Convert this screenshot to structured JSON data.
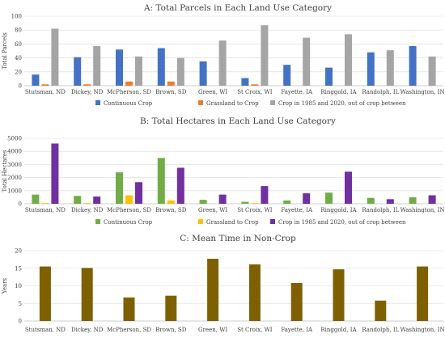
{
  "chart_data": [
    {
      "type": "bar",
      "title": "A: Total Parcels in Each Land Use Category",
      "xlabel": "",
      "ylabel": "Total Parcels",
      "ylim": [
        0,
        100
      ],
      "yticks": [
        0,
        20,
        40,
        60,
        80,
        100
      ],
      "grid": true,
      "legend": "bottom",
      "categories": [
        "Stutsman, ND",
        "Dickey, ND",
        "McPherson, SD",
        "Brown, SD",
        "Green, WI",
        "St Croix, WI",
        "Fayette, IA",
        "Ringgold, IA",
        "Randolph, IL",
        "Washington, IN"
      ],
      "series": [
        {
          "name": "Continuous Crop",
          "color": "#4472c4",
          "values": [
            16,
            41,
            52,
            54,
            35,
            11,
            30,
            26,
            48,
            57
          ]
        },
        {
          "name": "Grassland to Crop",
          "color": "#ed7d31",
          "values": [
            2,
            2,
            6,
            6,
            0,
            2,
            0,
            0,
            0,
            0
          ]
        },
        {
          "name": "Crop in 1985 and 2020, out of crop between",
          "color": "#a5a5a5",
          "values": [
            82,
            57,
            42,
            40,
            65,
            87,
            69,
            74,
            51,
            42
          ]
        }
      ]
    },
    {
      "type": "bar",
      "title": "B: Total Hectares in Each Land Use Category",
      "xlabel": "",
      "ylabel": "Total Hectares",
      "ylim": [
        0,
        5000
      ],
      "yticks": [
        0,
        1000,
        2000,
        3000,
        4000,
        5000
      ],
      "grid": true,
      "legend": "bottom",
      "categories": [
        "Stutsman, ND",
        "Dickey, ND",
        "McPherson, SD",
        "Brown, SD",
        "Green, WI",
        "St Croix, WI",
        "Fayette, IA",
        "Ringgold, IA",
        "Randolph, IL",
        "Washington, IN"
      ],
      "series": [
        {
          "name": "Continuous Crop",
          "color": "#70ad47",
          "values": [
            700,
            600,
            2400,
            3500,
            300,
            150,
            250,
            850,
            450,
            500
          ]
        },
        {
          "name": "Grassland to Crop",
          "color": "#ffc000",
          "values": [
            50,
            50,
            650,
            250,
            0,
            50,
            0,
            0,
            0,
            0
          ]
        },
        {
          "name": "Crop in 1985 and 2020, out of crop between",
          "color": "#7030a0",
          "values": [
            4600,
            550,
            1650,
            2750,
            700,
            1350,
            800,
            2450,
            350,
            650
          ]
        }
      ]
    },
    {
      "type": "bar",
      "title": "C: Mean Time in Non-Crop",
      "xlabel": "",
      "ylabel": "Years",
      "ylim": [
        0,
        20
      ],
      "yticks": [
        0,
        5,
        10,
        15,
        20
      ],
      "grid": true,
      "categories": [
        "Stutsman, ND",
        "Dickey, ND",
        "McPherson, SD",
        "Brown, SD",
        "Green, WI",
        "St Croix, WI",
        "Fayette, IA",
        "Ringgold, IA",
        "Randolph, IL",
        "Washington, IN"
      ],
      "series": [
        {
          "color": "#7f6000",
          "values": [
            15.5,
            15.1,
            6.7,
            7.2,
            17.7,
            16.1,
            10.8,
            14.7,
            5.8,
            15.5
          ]
        }
      ]
    }
  ]
}
